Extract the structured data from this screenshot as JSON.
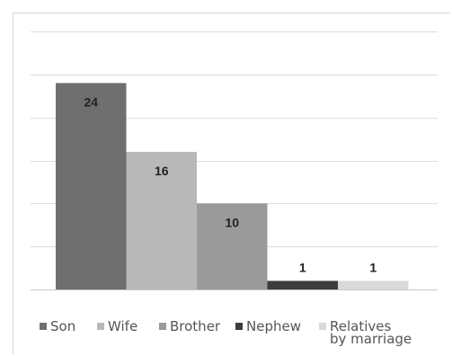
{
  "chart_data": {
    "type": "bar",
    "categories": [
      "Son",
      "Wife",
      "Brother",
      "Nephew",
      "Relatives\nby marriage"
    ],
    "values": [
      24,
      16,
      10,
      1,
      1
    ],
    "colors": [
      "#6f6f6f",
      "#b8b8b8",
      "#9a9a9a",
      "#3d3d3d",
      "#d9d9d9"
    ],
    "ylim": [
      0,
      30
    ],
    "grid": true,
    "legend_position": "bottom"
  }
}
